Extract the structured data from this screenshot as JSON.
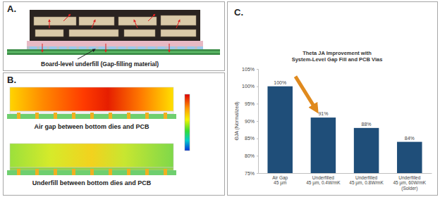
{
  "panels": {
    "a": {
      "label": "A.",
      "annotation": "Board-level underfill (Gap-filling material)"
    },
    "b": {
      "label": "B.",
      "captions": [
        "Air gap between bottom dies and PCB",
        "Underfill between bottom dies and PCB"
      ]
    },
    "c": {
      "label": "C."
    }
  },
  "chart_data": {
    "type": "bar",
    "title": "Theta JA Improvement with\nSystem-Level Gap Fill and PCB Vias",
    "ylabel": "ΘJA (Normalized)",
    "categories": [
      "Air Gap\n45 µm",
      "Underfilled\n45 µm, 0.4W/mK",
      "Underfilled\n45 µm, 0.8W/mK",
      "Underfilled\n45 µm, 60W/mK\n(Solder)"
    ],
    "values": [
      100,
      91,
      88,
      84
    ],
    "value_labels": [
      "100%",
      "91%",
      "88%",
      "84%"
    ],
    "color": "#1f4e79",
    "ylim": [
      75,
      105
    ],
    "yticks": [
      {
        "value": 75,
        "label": "75%"
      },
      {
        "value": 80,
        "label": "80%"
      },
      {
        "value": 85,
        "label": "85%"
      },
      {
        "value": 90,
        "label": "90%"
      },
      {
        "value": 95,
        "label": "95%"
      },
      {
        "value": 100,
        "label": "100%"
      },
      {
        "value": 105,
        "label": "105%"
      }
    ],
    "grid": false,
    "data_labels": true
  }
}
